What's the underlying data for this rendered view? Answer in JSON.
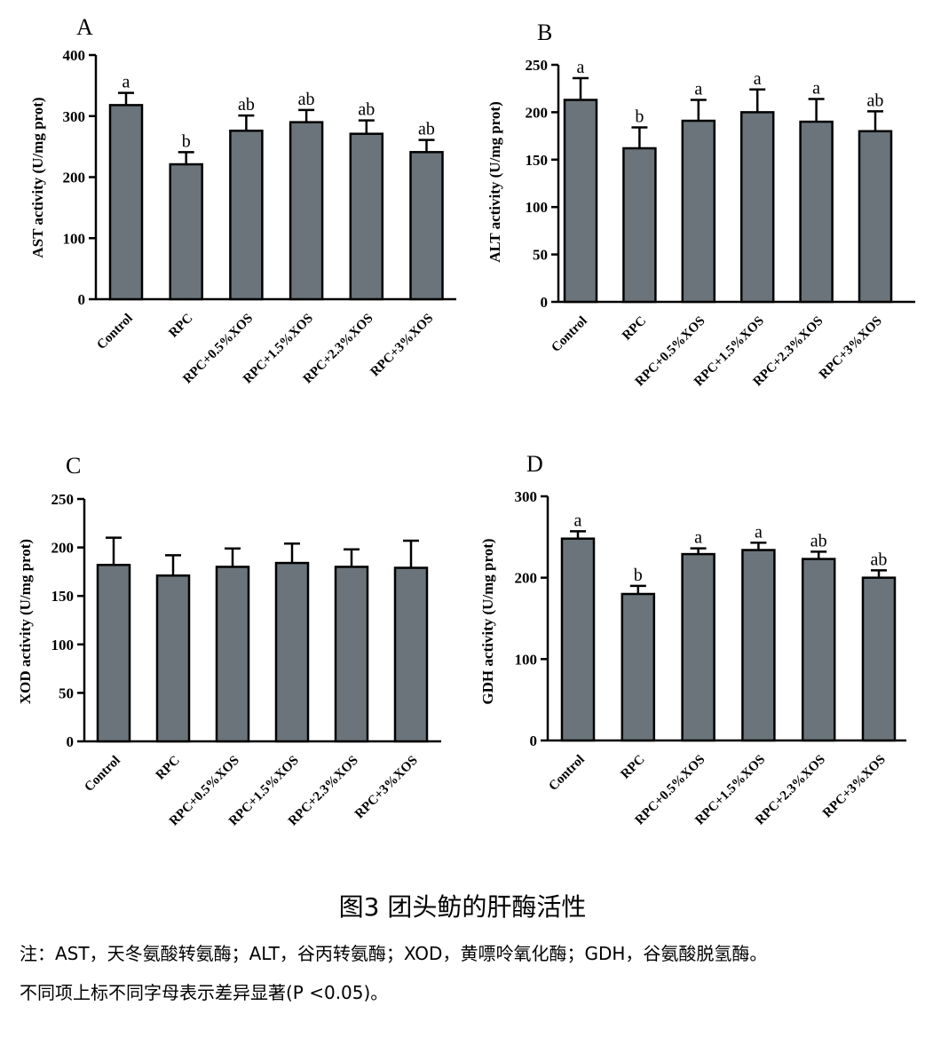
{
  "figure": {
    "caption_title": "图3 团头鲂的肝酶活性",
    "note_line1": "注：AST，天冬氨酸转氨酶；ALT，谷丙转氨酶；XOD，黄嘌呤氧化酶；GDH，谷氨酸脱氢酶。",
    "note_line2": "不同项上标不同字母表示差异显著(P <0.05)。",
    "bar_color": "#6a747a"
  },
  "chart_data": [
    {
      "panel": "A",
      "type": "bar",
      "categories": [
        "Control",
        "RPC",
        "RPC+0.5%XOS",
        "RPC+1.5%XOS",
        "RPC+2.3%XOS",
        "RPC+3%XOS"
      ],
      "values": [
        318,
        221,
        276,
        290,
        271,
        241
      ],
      "errors": [
        20,
        20,
        25,
        20,
        22,
        20
      ],
      "letters": [
        "a",
        "b",
        "ab",
        "ab",
        "ab",
        "ab"
      ],
      "ylabel": "AST activity (U/mg prot)",
      "ylim": [
        0,
        400
      ],
      "yticks": [
        0,
        100,
        200,
        300,
        400
      ]
    },
    {
      "panel": "B",
      "type": "bar",
      "categories": [
        "Control",
        "RPC",
        "RPC+0.5%XOS",
        "RPC+1.5%XOS",
        "RPC+2.3%XOS",
        "RPC+3%XOS"
      ],
      "values": [
        213,
        162,
        191,
        200,
        190,
        180
      ],
      "errors": [
        23,
        22,
        22,
        24,
        24,
        21
      ],
      "letters": [
        "a",
        "b",
        "a",
        "a",
        "a",
        "ab"
      ],
      "ylabel": "ALT activity (U/mg prot)",
      "ylim": [
        0,
        250
      ],
      "yticks": [
        0,
        50,
        100,
        150,
        200,
        250
      ]
    },
    {
      "panel": "C",
      "type": "bar",
      "categories": [
        "Control",
        "RPC",
        "RPC+0.5%XOS",
        "RPC+1.5%XOS",
        "RPC+2.3%XOS",
        "RPC+3%XOS"
      ],
      "values": [
        182,
        171,
        180,
        184,
        180,
        179
      ],
      "errors": [
        28,
        21,
        19,
        20,
        18,
        28
      ],
      "letters": [
        "",
        "",
        "",
        "",
        "",
        ""
      ],
      "ylabel": "XOD activity (U/mg  prot)",
      "ylim": [
        0,
        250
      ],
      "yticks": [
        0,
        50,
        100,
        150,
        200,
        250
      ]
    },
    {
      "panel": "D",
      "type": "bar",
      "categories": [
        "Control",
        "RPC",
        "RPC+0.5%XOS",
        "RPC+1.5%XOS",
        "RPC+2.3%XOS",
        "RPC+3%XOS"
      ],
      "values": [
        248,
        180,
        229,
        234,
        223,
        200
      ],
      "errors": [
        9,
        10,
        7,
        9,
        9,
        9
      ],
      "letters": [
        "a",
        "b",
        "a",
        "a",
        "ab",
        "ab"
      ],
      "ylabel": "GDH activity (U/mg prot)",
      "ylim": [
        0,
        300
      ],
      "yticks": [
        0,
        100,
        200,
        300
      ]
    }
  ]
}
